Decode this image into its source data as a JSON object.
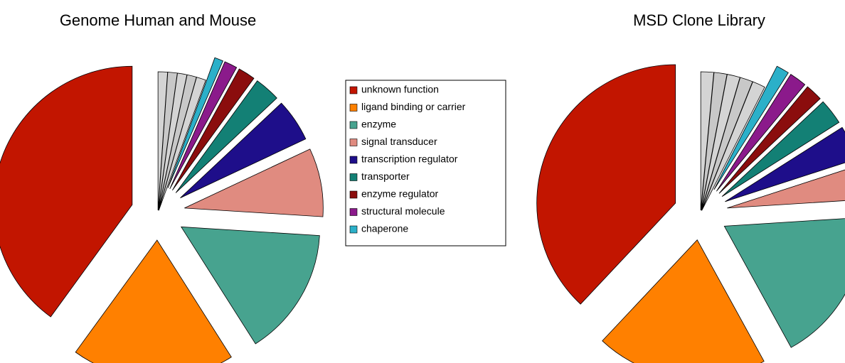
{
  "chart_data": [
    {
      "type": "pie",
      "title": "Genome Human and Mouse",
      "categories": [
        "unknown function",
        "ligand binding or carrier",
        "enzyme",
        "signal transducer",
        "transcription regulator",
        "transporter",
        "enzyme regulator",
        "structural molecule",
        "chaperone",
        null,
        null,
        null,
        null,
        null
      ],
      "values": [
        40,
        19,
        15,
        8,
        5,
        3,
        2,
        1.5,
        1,
        1.1,
        1.1,
        1.1,
        1.1,
        1.1
      ],
      "colors": [
        "#c21500",
        "#ff8000",
        "#47a38f",
        "#e08b80",
        "#1e0e8a",
        "#138075",
        "#8b0d0d",
        "#8b1a8b",
        "#2bb0c9",
        "#d4d4d4",
        "#c8c8c8",
        "#d4d4d4",
        "#c8c8c8",
        "#d4d4d4"
      ]
    },
    {
      "type": "pie",
      "title": "MSD Clone Library",
      "categories": [
        "unknown function",
        "ligand binding or carrier",
        "enzyme",
        "signal transducer",
        "transcription regulator",
        "transporter",
        "enzyme regulator",
        "structural molecule",
        "chaperone",
        null,
        null,
        null,
        null,
        null
      ],
      "values": [
        38,
        20,
        18,
        4,
        4,
        3,
        2,
        2,
        1.5,
        1.5,
        1.5,
        1.5,
        1.5,
        1.5
      ],
      "colors": [
        "#c21500",
        "#ff8000",
        "#47a38f",
        "#e08b80",
        "#1e0e8a",
        "#138075",
        "#8b0d0d",
        "#8b1a8b",
        "#2bb0c9",
        "#d4d4d4",
        "#c8c8c8",
        "#d4d4d4",
        "#c8c8c8",
        "#d4d4d4"
      ]
    }
  ]
}
